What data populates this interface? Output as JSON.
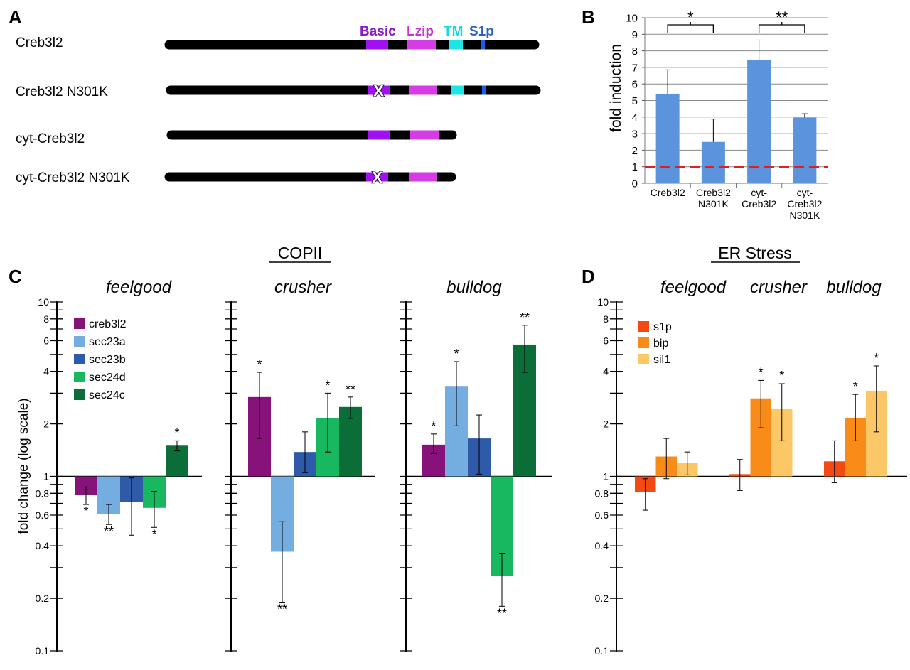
{
  "colors": {
    "creb3l2": "#86127a",
    "sec23a": "#74ade0",
    "sec23b": "#2e5aa8",
    "sec24d": "#17b860",
    "sec24c": "#0b6e38",
    "s1p": "#f24a12",
    "bip": "#f98b18",
    "sil1": "#fcc766",
    "barB": "#5b94dd",
    "basic": "#a010f0",
    "lzip": "#d63ce6",
    "tm": "#1ee5e5",
    "s1p_site": "#1a5ce8",
    "dashed": "#e0201e",
    "basicText": "#8a1ac8",
    "lzipText": "#c634d6",
    "tmText": "#18d6e0",
    "s1pText": "#2a60c8"
  },
  "panelA": {
    "label": "A",
    "domainLabels": {
      "basic": "Basic",
      "lzip": "Lzip",
      "tm": "TM",
      "s1p": "S1p"
    },
    "mutationMark": "X",
    "constructs": [
      {
        "name": "Creb3l2",
        "domains": [
          "basic",
          "lzip",
          "tm",
          "s1p"
        ],
        "mutated": false,
        "length": "full"
      },
      {
        "name": "Creb3l2 N301K",
        "domains": [
          "basic",
          "lzip",
          "tm",
          "s1p"
        ],
        "mutated": true,
        "length": "full"
      },
      {
        "name": "cyt-Creb3l2",
        "domains": [
          "basic",
          "lzip"
        ],
        "mutated": false,
        "length": "truncated"
      },
      {
        "name": "cyt-Creb3l2 N301K",
        "domains": [
          "basic",
          "lzip"
        ],
        "mutated": true,
        "length": "truncated"
      }
    ]
  },
  "chart_data": [
    {
      "panel": "B",
      "type": "bar",
      "ylabel": "fold  induction",
      "ylim": [
        0,
        10
      ],
      "yticks": [
        0,
        1,
        2,
        3,
        4,
        5,
        6,
        7,
        8,
        9,
        10
      ],
      "grid": true,
      "categories": [
        [
          "Creb3l2"
        ],
        [
          "Creb3l2",
          "N301K"
        ],
        [
          "cyt-",
          "Creb3l2"
        ],
        [
          "cyt-",
          "Creb3l2",
          "N301K"
        ]
      ],
      "values": [
        5.4,
        2.5,
        7.45,
        3.97
      ],
      "errors": [
        1.45,
        1.38,
        1.2,
        0.23
      ],
      "reference_line": 1,
      "significance": [
        {
          "pair": [
            0,
            1
          ],
          "label": "*"
        },
        {
          "pair": [
            2,
            3
          ],
          "label": "**"
        }
      ]
    },
    {
      "panel": "C",
      "type": "bar",
      "title": "COPII",
      "ylabel": "fold change (log scale)",
      "yscale": "log",
      "ylim": [
        0.1,
        10
      ],
      "ytick_labels": [
        "0.1",
        "0.2",
        "0.4",
        "0.6",
        "0.8",
        "1",
        "2",
        "4",
        "6",
        "8",
        "10"
      ],
      "ytick_values": [
        0.1,
        0.2,
        0.4,
        0.6,
        0.8,
        1,
        2,
        4,
        6,
        8,
        10
      ],
      "legend_position": "top-left",
      "series_names": [
        "creb3l2",
        "sec23a",
        "sec23b",
        "sec24d",
        "sec24c"
      ],
      "groups": [
        {
          "name": "feelgood",
          "bars": [
            {
              "series": "creb3l2",
              "value": 0.78,
              "err": [
                0.69,
                0.87
              ],
              "sig": "*"
            },
            {
              "series": "sec23a",
              "value": 0.61,
              "err": [
                0.53,
                0.69
              ],
              "sig": "**"
            },
            {
              "series": "sec23b",
              "value": 0.71,
              "err": [
                0.46,
                0.98
              ],
              "sig": ""
            },
            {
              "series": "sec24d",
              "value": 0.66,
              "err": [
                0.51,
                0.82
              ],
              "sig": "*"
            },
            {
              "series": "sec24c",
              "value": 1.5,
              "err": [
                1.4,
                1.6
              ],
              "sig": "*"
            }
          ]
        },
        {
          "name": "crusher",
          "bars": [
            {
              "series": "creb3l2",
              "value": 2.85,
              "err": [
                1.65,
                3.95
              ],
              "sig": "*"
            },
            {
              "series": "sec23a",
              "value": 0.37,
              "err": [
                0.19,
                0.55
              ],
              "sig": "**"
            },
            {
              "series": "sec23b",
              "value": 1.38,
              "err": [
                1.05,
                1.8
              ],
              "sig": ""
            },
            {
              "series": "sec24d",
              "value": 2.15,
              "err": [
                1.38,
                3.0
              ],
              "sig": "*"
            },
            {
              "series": "sec24c",
              "value": 2.5,
              "err": [
                2.15,
                2.85
              ],
              "sig": "**"
            }
          ]
        },
        {
          "name": "bulldog",
          "bars": [
            {
              "series": "creb3l2",
              "value": 1.52,
              "err": [
                1.35,
                1.75
              ],
              "sig": "*"
            },
            {
              "series": "sec23a",
              "value": 3.3,
              "err": [
                1.95,
                4.55
              ],
              "sig": "*"
            },
            {
              "series": "sec23b",
              "value": 1.65,
              "err": [
                1.03,
                2.25
              ],
              "sig": ""
            },
            {
              "series": "sec24d",
              "value": 0.27,
              "err": [
                0.18,
                0.36
              ],
              "sig": "**"
            },
            {
              "series": "sec24c",
              "value": 5.7,
              "err": [
                3.95,
                7.35
              ],
              "sig": "**"
            }
          ]
        }
      ]
    },
    {
      "panel": "D",
      "type": "bar",
      "title": "ER Stress",
      "yscale": "log",
      "ylim": [
        0.1,
        10
      ],
      "ytick_labels": [
        "0.1",
        "0.2",
        "0.4",
        "0.6",
        "0.8",
        "1",
        "2",
        "4",
        "6",
        "8",
        "10"
      ],
      "ytick_values": [
        0.1,
        0.2,
        0.4,
        0.6,
        0.8,
        1,
        2,
        4,
        6,
        8,
        10
      ],
      "legend_position": "top-left",
      "series_names": [
        "s1p",
        "bip",
        "sil1"
      ],
      "groups": [
        {
          "name": "feelgood",
          "bars": [
            {
              "series": "s1p",
              "value": 0.81,
              "err": [
                0.64,
                0.97
              ],
              "sig": ""
            },
            {
              "series": "bip",
              "value": 1.3,
              "err": [
                0.97,
                1.65
              ],
              "sig": ""
            },
            {
              "series": "sil1",
              "value": 1.2,
              "err": [
                1.02,
                1.38
              ],
              "sig": ""
            }
          ]
        },
        {
          "name": "crusher",
          "bars": [
            {
              "series": "s1p",
              "value": 1.03,
              "err": [
                0.83,
                1.25
              ],
              "sig": ""
            },
            {
              "series": "bip",
              "value": 2.8,
              "err": [
                1.9,
                3.55
              ],
              "sig": "*"
            },
            {
              "series": "sil1",
              "value": 2.45,
              "err": [
                1.6,
                3.4
              ],
              "sig": "*"
            }
          ]
        },
        {
          "name": "bulldog",
          "bars": [
            {
              "series": "s1p",
              "value": 1.22,
              "err": [
                0.92,
                1.6
              ],
              "sig": ""
            },
            {
              "series": "bip",
              "value": 2.15,
              "err": [
                1.6,
                2.95
              ],
              "sig": "*"
            },
            {
              "series": "sil1",
              "value": 3.1,
              "err": [
                1.8,
                4.3
              ],
              "sig": "*"
            }
          ]
        }
      ]
    }
  ]
}
